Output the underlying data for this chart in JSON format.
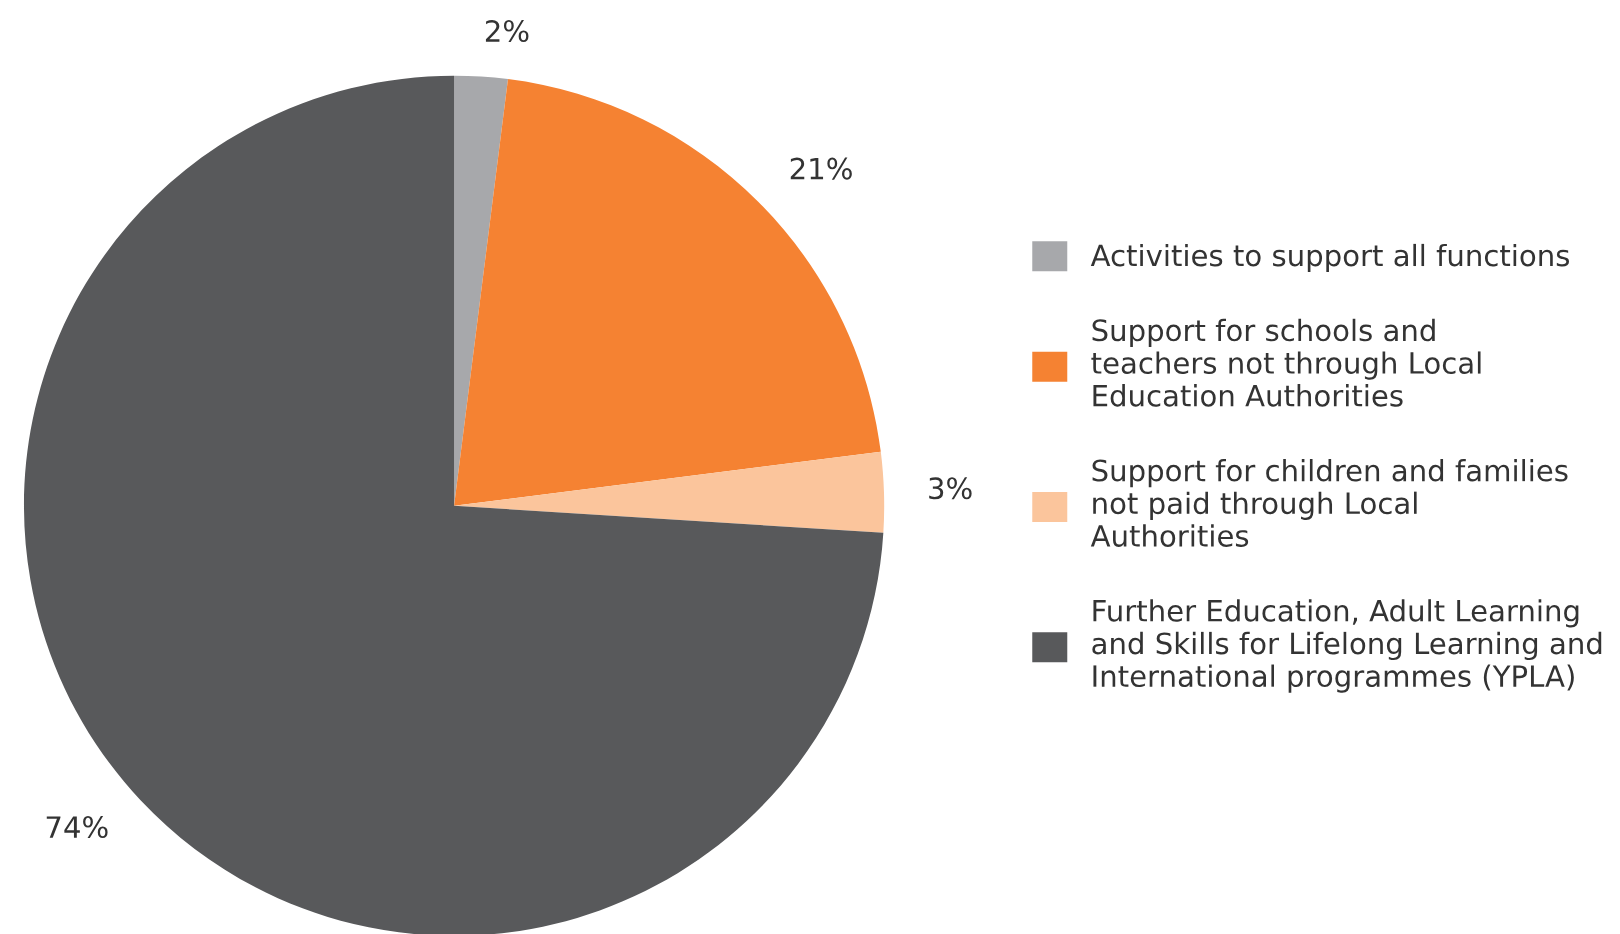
{
  "chart_data": {
    "type": "pie",
    "categories": [
      "Activities to support all functions",
      "Support for schools and\nteachers not through Local\nEducation Authorities",
      "Support for children and families\nnot paid through Local\nAuthorities",
      "Further Education, Adult Learning\nand Skills for Lifelong Learning and\nInternational programmes (YPLA)"
    ],
    "values": [
      2,
      21,
      3,
      74
    ],
    "colors": [
      "#a7a8ab",
      "#f58232",
      "#fbc59c",
      "#58595b"
    ],
    "value_labels": [
      "2%",
      "21%",
      "3%",
      "74%"
    ],
    "legend": "right"
  }
}
